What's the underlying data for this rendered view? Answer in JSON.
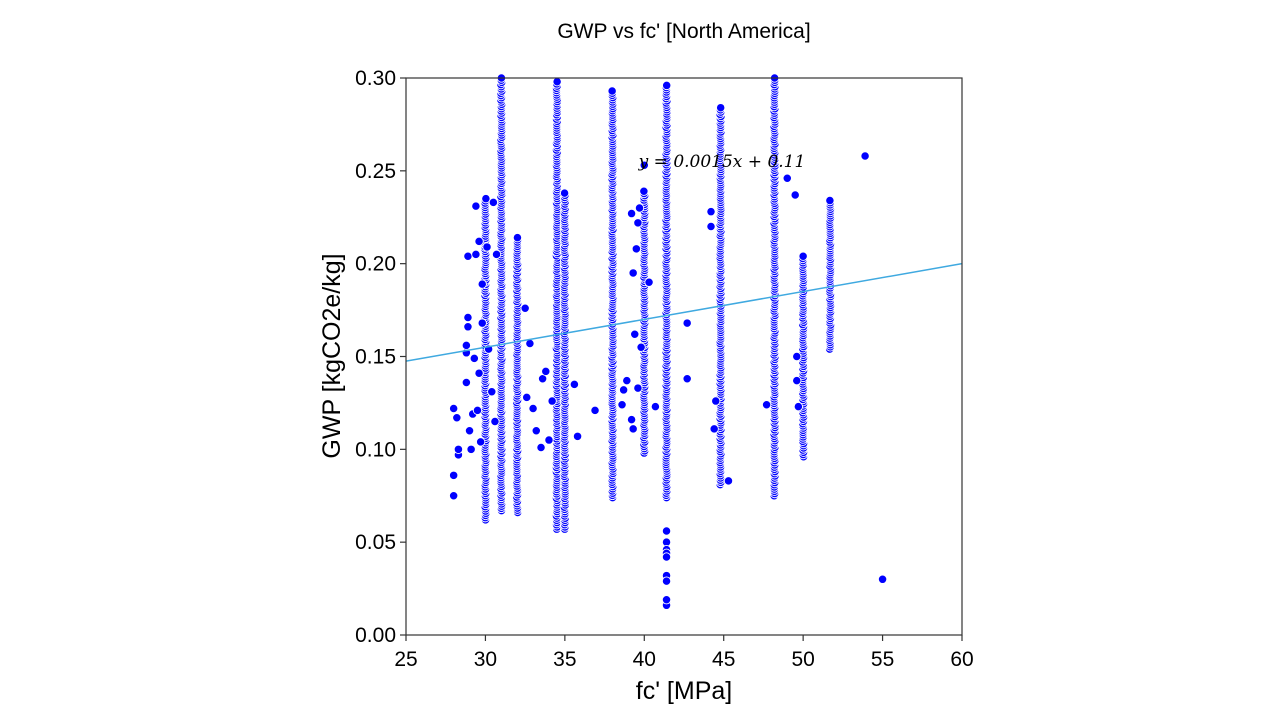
{
  "chart_data": {
    "type": "scatter",
    "title": "GWP vs fc' [North America]",
    "xlabel": "fc' [MPa]",
    "ylabel": "GWP [kgCO2e/kg]",
    "xlim": [
      25,
      60
    ],
    "ylim": [
      0,
      0.3
    ],
    "xticks": [
      25,
      30,
      35,
      40,
      45,
      50,
      55,
      60
    ],
    "yticks": [
      0.0,
      0.05,
      0.1,
      0.15,
      0.2,
      0.25,
      0.3
    ],
    "xtick_labels": [
      "25",
      "30",
      "35",
      "40",
      "45",
      "50",
      "55",
      "60"
    ],
    "ytick_labels": [
      "0.00",
      "0.05",
      "0.10",
      "0.15",
      "0.20",
      "0.25",
      "0.30"
    ],
    "grid": false,
    "legend": "none",
    "colors": {
      "points": "#0000ff",
      "point_edge": "#ffffff",
      "trendline": "#3fa9e0",
      "axes": "#333333"
    },
    "annotation": "y = 0.0015x + 0.11",
    "trendline": {
      "slope": 0.0015,
      "intercept": 0.11
    },
    "series": [
      {
        "columns": [
          {
            "x": 30.0,
            "ymin": 0.062,
            "ymax": 0.235
          },
          {
            "x": 31.0,
            "ymin": 0.067,
            "ymax": 0.3
          },
          {
            "x": 32.0,
            "ymin": 0.066,
            "ymax": 0.214
          },
          {
            "x": 34.5,
            "ymin": 0.057,
            "ymax": 0.298
          },
          {
            "x": 35.0,
            "ymin": 0.057,
            "ymax": 0.238
          },
          {
            "x": 38.0,
            "ymin": 0.074,
            "ymax": 0.293
          },
          {
            "x": 40.0,
            "ymin": 0.098,
            "ymax": 0.239
          },
          {
            "x": 41.4,
            "ymin": 0.074,
            "ymax": 0.296
          },
          {
            "x": 44.8,
            "ymin": 0.081,
            "ymax": 0.284
          },
          {
            "x": 48.2,
            "ymin": 0.075,
            "ymax": 0.3
          },
          {
            "x": 50.0,
            "ymin": 0.096,
            "ymax": 0.204
          },
          {
            "x": 51.7,
            "ymin": 0.154,
            "ymax": 0.234
          }
        ],
        "points": [
          [
            28.0,
            0.075
          ],
          [
            28.0,
            0.086
          ],
          [
            28.0,
            0.122
          ],
          [
            28.2,
            0.117
          ],
          [
            28.3,
            0.097
          ],
          [
            28.3,
            0.1
          ],
          [
            28.8,
            0.136
          ],
          [
            28.8,
            0.152
          ],
          [
            28.8,
            0.156
          ],
          [
            28.9,
            0.171
          ],
          [
            28.9,
            0.166
          ],
          [
            28.9,
            0.204
          ],
          [
            29.0,
            0.11
          ],
          [
            29.1,
            0.1
          ],
          [
            29.2,
            0.119
          ],
          [
            29.3,
            0.149
          ],
          [
            29.4,
            0.231
          ],
          [
            29.4,
            0.205
          ],
          [
            29.5,
            0.121
          ],
          [
            29.6,
            0.141
          ],
          [
            29.6,
            0.212
          ],
          [
            29.7,
            0.104
          ],
          [
            29.8,
            0.168
          ],
          [
            29.8,
            0.189
          ],
          [
            30.1,
            0.209
          ],
          [
            30.2,
            0.154
          ],
          [
            30.4,
            0.131
          ],
          [
            30.6,
            0.115
          ],
          [
            30.7,
            0.205
          ],
          [
            30.5,
            0.233
          ],
          [
            32.5,
            0.176
          ],
          [
            32.6,
            0.128
          ],
          [
            32.8,
            0.157
          ],
          [
            33.0,
            0.122
          ],
          [
            33.2,
            0.11
          ],
          [
            33.5,
            0.101
          ],
          [
            33.6,
            0.138
          ],
          [
            33.8,
            0.142
          ],
          [
            34.0,
            0.105
          ],
          [
            34.2,
            0.126
          ],
          [
            35.6,
            0.135
          ],
          [
            35.8,
            0.107
          ],
          [
            36.9,
            0.121
          ],
          [
            38.6,
            0.124
          ],
          [
            38.7,
            0.132
          ],
          [
            38.9,
            0.137
          ],
          [
            39.2,
            0.116
          ],
          [
            39.3,
            0.111
          ],
          [
            39.2,
            0.227
          ],
          [
            39.3,
            0.195
          ],
          [
            39.4,
            0.162
          ],
          [
            39.5,
            0.208
          ],
          [
            39.6,
            0.222
          ],
          [
            39.7,
            0.23
          ],
          [
            39.8,
            0.155
          ],
          [
            39.6,
            0.133
          ],
          [
            40.3,
            0.19
          ],
          [
            40.7,
            0.123
          ],
          [
            42.7,
            0.168
          ],
          [
            42.7,
            0.138
          ],
          [
            44.2,
            0.228
          ],
          [
            44.2,
            0.22
          ],
          [
            44.5,
            0.126
          ],
          [
            44.4,
            0.111
          ],
          [
            45.3,
            0.083
          ],
          [
            47.7,
            0.124
          ],
          [
            49.0,
            0.246
          ],
          [
            49.5,
            0.237
          ],
          [
            49.6,
            0.15
          ],
          [
            49.6,
            0.137
          ],
          [
            49.7,
            0.123
          ],
          [
            53.9,
            0.258
          ],
          [
            55.0,
            0.03
          ],
          [
            41.4,
            0.056
          ],
          [
            41.4,
            0.05
          ],
          [
            41.4,
            0.046
          ],
          [
            41.4,
            0.044
          ],
          [
            41.4,
            0.042
          ],
          [
            41.4,
            0.032
          ],
          [
            41.4,
            0.029
          ],
          [
            41.4,
            0.017
          ],
          [
            41.4,
            0.016
          ],
          [
            40.0,
            0.253
          ],
          [
            41.4,
            0.019
          ]
        ]
      }
    ]
  }
}
